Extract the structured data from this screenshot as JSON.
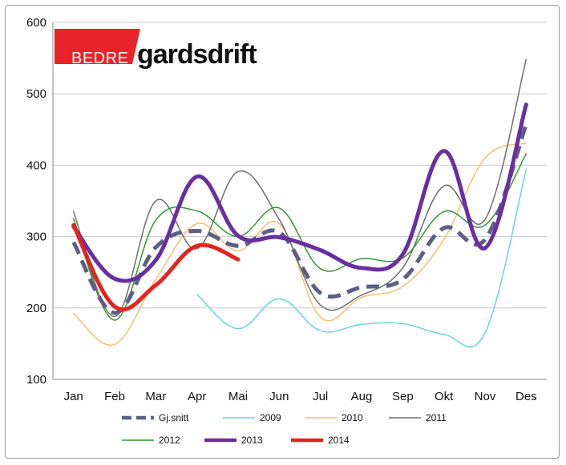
{
  "logo": {
    "part1": "BEDRE",
    "part2": "gardsdrift",
    "accent_color": "#e8242a"
  },
  "chart_data": {
    "type": "line",
    "title": "",
    "xlabel": "",
    "ylabel": "",
    "ylim": [
      100,
      600
    ],
    "yticks": [
      100,
      200,
      300,
      400,
      500,
      600
    ],
    "grid": "horizontal",
    "legend_position": "bottom",
    "categories": [
      "Jan",
      "Feb",
      "Mar",
      "Apr",
      "Mai",
      "Jun",
      "Jul",
      "Aug",
      "Sep",
      "Okt",
      "Nov",
      "Des"
    ],
    "series": [
      {
        "name": "Gj.snitt",
        "color": "#5b5f86",
        "dash": true,
        "width": 5,
        "values": [
          292,
          193,
          285,
          308,
          287,
          306,
          221,
          229,
          240,
          312,
          296,
          457
        ]
      },
      {
        "name": "2009",
        "color": "#66d4e2",
        "dash": false,
        "width": 1.5,
        "values": [
          null,
          null,
          null,
          219,
          171,
          213,
          168,
          177,
          178,
          163,
          165,
          394
        ]
      },
      {
        "name": "2010",
        "color": "#f5bf6e",
        "dash": false,
        "width": 1.5,
        "values": [
          192,
          149,
          240,
          318,
          280,
          318,
          187,
          215,
          230,
          296,
          410,
          431
        ]
      },
      {
        "name": "2011",
        "color": "#6e6e6e",
        "dash": false,
        "width": 1.5,
        "values": [
          335,
          188,
          350,
          283,
          391,
          324,
          204,
          218,
          256,
          371,
          324,
          548
        ]
      },
      {
        "name": "2012",
        "color": "#2e9a2e",
        "dash": false,
        "width": 1.5,
        "values": [
          325,
          183,
          323,
          336,
          300,
          340,
          255,
          269,
          270,
          335,
          316,
          416
        ]
      },
      {
        "name": "2013",
        "color": "#6a2ea2",
        "dash": false,
        "width": 5,
        "values": [
          314,
          241,
          267,
          384,
          301,
          299,
          281,
          256,
          275,
          420,
          284,
          485
        ]
      },
      {
        "name": "2014",
        "color": "#e3241e",
        "dash": false,
        "width": 5,
        "values": [
          316,
          202,
          232,
          287,
          268,
          null,
          null,
          null,
          null,
          null,
          null,
          null
        ]
      }
    ]
  }
}
